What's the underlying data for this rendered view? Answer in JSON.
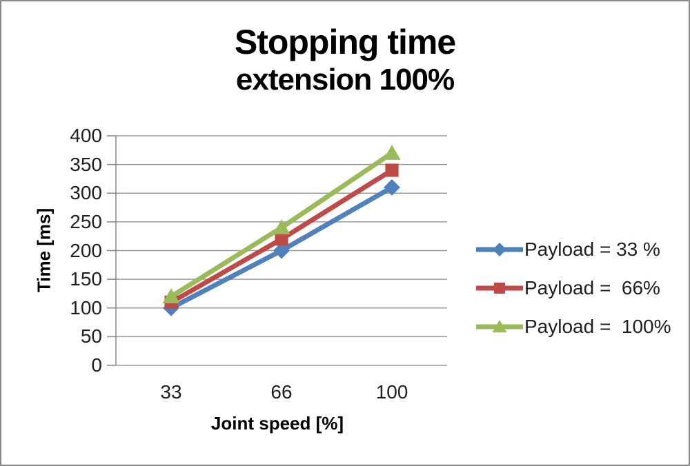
{
  "frame": {
    "background": "#ffffff",
    "border_color": "#888888"
  },
  "title": {
    "line1": "Stopping time",
    "line2": "extension 100%"
  },
  "axes": {
    "y_title": "Time [ms]",
    "x_title": "Joint speed [%]",
    "y_tick_labels": [
      0,
      50,
      100,
      150,
      200,
      250,
      300,
      350,
      400
    ],
    "x_tick_labels": [
      "33",
      "66",
      "100"
    ]
  },
  "colors": {
    "gridline": "#999999",
    "axis": "#8c8c8c",
    "blue_series": "#4F81BD",
    "red_series": "#BE4B48",
    "green_series": "#9BBB59"
  },
  "chart_data": {
    "type": "line",
    "title": "Stopping time extension 100%",
    "categories": [
      33,
      66,
      100
    ],
    "xlabel": "Joint speed [%]",
    "ylabel": "Time [ms]",
    "ylim": [
      0,
      400
    ],
    "ytick_step": 50,
    "grid": true,
    "legend_position": "right",
    "series": [
      {
        "name": "Payload = 33 %",
        "values": [
          100,
          200,
          310
        ],
        "color": "#4F81BD",
        "marker": "diamond"
      },
      {
        "name": "Payload =  66%",
        "values": [
          110,
          220,
          340
        ],
        "color": "#BE4B48",
        "marker": "square"
      },
      {
        "name": "Payload =  100%",
        "values": [
          120,
          240,
          370
        ],
        "color": "#9BBB59",
        "marker": "triangle"
      }
    ]
  }
}
